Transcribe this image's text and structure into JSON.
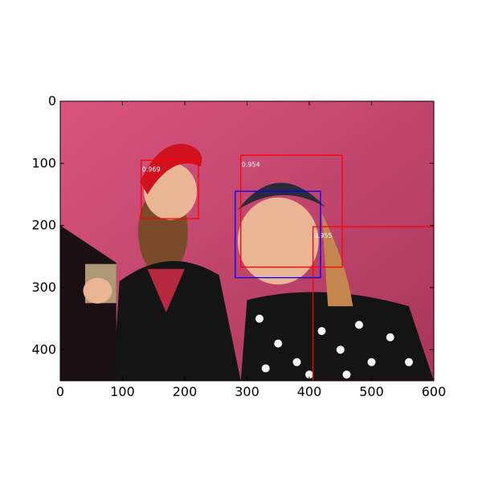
{
  "chart_data": {
    "type": "image-detections",
    "title": "",
    "xlabel": "",
    "ylabel": "",
    "xlim": [
      0,
      600
    ],
    "ylim": [
      450,
      0
    ],
    "x_ticks": [
      0,
      100,
      200,
      300,
      400,
      500,
      600
    ],
    "y_ticks": [
      0,
      100,
      200,
      300,
      400
    ],
    "grid": false,
    "image_description_icon": "photo-two-women-pink-wall",
    "colors": {
      "photo_wall": "#d9557f",
      "photo_wall_dark": "#a8365a",
      "skin": "#e9b595",
      "hair": "#7a4a2a",
      "dress": "#141414",
      "ribbon": "#d0121f",
      "spot": "#f4f4f4",
      "box_red": "#ff0000",
      "box_blue": "#0000ff",
      "label_text": "#ffffff"
    },
    "boxes": [
      {
        "x0": 130,
        "y0": 95,
        "x1": 222,
        "y1": 189,
        "color": "red",
        "label": "0.969"
      },
      {
        "x0": 290,
        "y0": 87,
        "x1": 453,
        "y1": 267,
        "color": "red",
        "label": "0.954"
      },
      {
        "x0": 406,
        "y0": 202,
        "x1": 600,
        "y1": 450,
        "color": "red",
        "label": "0.955"
      },
      {
        "x0": 281,
        "y0": 145,
        "x1": 418,
        "y1": 284,
        "color": "blue",
        "label": ""
      }
    ]
  }
}
